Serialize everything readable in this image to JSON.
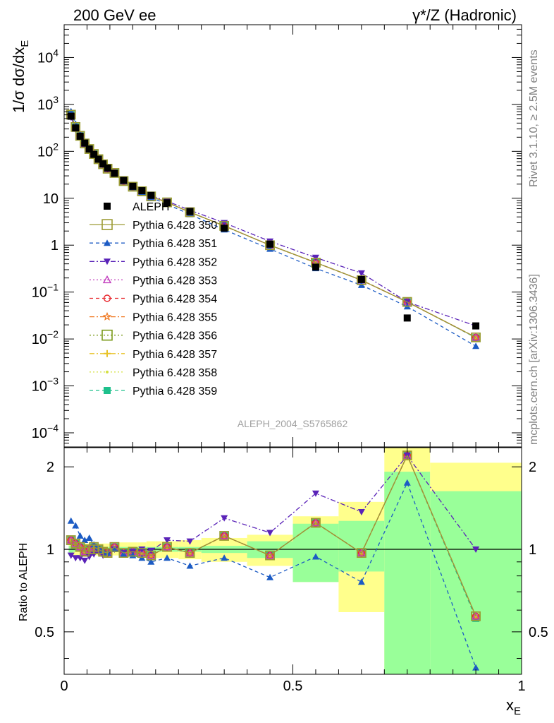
{
  "header": {
    "left": "200 GeV ee",
    "right": "γ*/Z (Hadronic)"
  },
  "side_labels": {
    "rivet": "Rivet 3.1.10, ≥ 2.5M events",
    "source": "mcplots.cern.ch [arXiv:1306.3436]"
  },
  "analysis_tag": "ALEPH_2004_S5765862",
  "axes": {
    "ylabel_main": "1/σ dσ/dx_E",
    "ylabel_ratio": "Ratio to ALEPH",
    "xlabel": "x_E",
    "x_ticks": [
      "0",
      "0.5",
      "1"
    ],
    "y_ticks_main": [
      "10^4",
      "10^3",
      "10^2",
      "10",
      "1",
      "10^−1",
      "10^−2",
      "10^−3",
      "10^−4"
    ],
    "y_ticks_ratio": [
      "2",
      "1",
      "0.5"
    ]
  },
  "legend": [
    {
      "label": "ALEPH",
      "color": "#000000",
      "marker": "square-filled",
      "dash": "none"
    },
    {
      "label": "Pythia 6.428 350",
      "color": "#9c9b34",
      "marker": "square-open",
      "dash": "solid"
    },
    {
      "label": "Pythia 6.428 351",
      "color": "#1c5bc4",
      "marker": "triangle-up-filled",
      "dash": "dashed"
    },
    {
      "label": "Pythia 6.428 352",
      "color": "#5a23b8",
      "marker": "triangle-down-filled",
      "dash": "dashdot"
    },
    {
      "label": "Pythia 6.428 353",
      "color": "#c13bbd",
      "marker": "triangle-up-open",
      "dash": "dotted"
    },
    {
      "label": "Pythia 6.428 354",
      "color": "#e8262c",
      "marker": "circle-open",
      "dash": "dashed"
    },
    {
      "label": "Pythia 6.428 355",
      "color": "#f07a24",
      "marker": "star-open",
      "dash": "dashdot"
    },
    {
      "label": "Pythia 6.428 356",
      "color": "#7c9b1c",
      "marker": "square-open",
      "dash": "dotted"
    },
    {
      "label": "Pythia 6.428 357",
      "color": "#e8c227",
      "marker": "cross-filled",
      "dash": "dashdot"
    },
    {
      "label": "Pythia 6.428 358",
      "color": "#d4e040",
      "marker": "dot",
      "dash": "dotted"
    },
    {
      "label": "Pythia 6.428 359",
      "color": "#1ec08c",
      "marker": "square-filled",
      "dash": "dashed"
    }
  ],
  "chart_data": {
    "type": "scatter",
    "xlabel": "x_E",
    "xlim": [
      0,
      1
    ],
    "main_ylim": [
      5e-05,
      50000
    ],
    "main_scale": "log",
    "ratio_ylim": [
      0.35,
      2.35
    ],
    "ratio_scale": "log",
    "x": [
      0.015,
      0.025,
      0.035,
      0.045,
      0.055,
      0.065,
      0.075,
      0.085,
      0.095,
      0.11,
      0.13,
      0.15,
      0.17,
      0.19,
      0.225,
      0.275,
      0.35,
      0.45,
      0.55,
      0.65,
      0.75,
      0.9
    ],
    "data": {
      "name": "ALEPH",
      "values": [
        560,
        315,
        210,
        150,
        112,
        86,
        68,
        54,
        44,
        34,
        24,
        18,
        14.5,
        11.5,
        8.0,
        5.2,
        2.3,
        1.05,
        0.34,
        0.185,
        0.028,
        0.019
      ]
    },
    "band_x_edges": [
      0.01,
      0.02,
      0.03,
      0.04,
      0.05,
      0.06,
      0.07,
      0.08,
      0.09,
      0.1,
      0.12,
      0.14,
      0.16,
      0.18,
      0.2,
      0.25,
      0.3,
      0.4,
      0.5,
      0.6,
      0.7,
      0.8,
      1.0
    ],
    "band_inner": [
      [
        0.97,
        1.03
      ],
      [
        0.98,
        1.02
      ],
      [
        0.98,
        1.02
      ],
      [
        0.98,
        1.02
      ],
      [
        0.98,
        1.02
      ],
      [
        0.98,
        1.02
      ],
      [
        0.98,
        1.02
      ],
      [
        0.98,
        1.02
      ],
      [
        0.98,
        1.02
      ],
      [
        0.98,
        1.02
      ],
      [
        0.98,
        1.02
      ],
      [
        0.98,
        1.02
      ],
      [
        0.98,
        1.02
      ],
      [
        0.98,
        1.02
      ],
      [
        0.98,
        1.02
      ],
      [
        0.98,
        1.02
      ],
      [
        0.97,
        1.03
      ],
      [
        0.93,
        1.07
      ],
      [
        0.76,
        1.24
      ],
      [
        0.83,
        1.27
      ],
      [
        0.35,
        1.92
      ],
      [
        0.35,
        1.63
      ]
    ],
    "band_outer": [
      [
        0.95,
        1.05
      ],
      [
        0.95,
        1.05
      ],
      [
        0.95,
        1.05
      ],
      [
        0.95,
        1.05
      ],
      [
        0.95,
        1.05
      ],
      [
        0.95,
        1.05
      ],
      [
        0.95,
        1.05
      ],
      [
        0.95,
        1.05
      ],
      [
        0.95,
        1.05
      ],
      [
        0.95,
        1.05
      ],
      [
        0.94,
        1.06
      ],
      [
        0.94,
        1.06
      ],
      [
        0.94,
        1.06
      ],
      [
        0.93,
        1.07
      ],
      [
        0.93,
        1.07
      ],
      [
        0.92,
        1.08
      ],
      [
        0.9,
        1.1
      ],
      [
        0.87,
        1.13
      ],
      [
        0.76,
        1.32
      ],
      [
        0.59,
        1.49
      ],
      [
        0.35,
        2.35
      ],
      [
        0.44,
        2.07
      ]
    ],
    "mc_series": [
      {
        "name": "Pythia 6.428 350",
        "ratio": [
          1.08,
          1.05,
          1.02,
          0.98,
          1.0,
          1.02,
          1.0,
          0.98,
          0.97,
          1.02,
          0.97,
          0.98,
          0.97,
          0.95,
          1.02,
          0.97,
          1.12,
          0.95,
          1.25,
          0.97,
          2.2,
          0.57
        ]
      },
      {
        "name": "Pythia 6.428 351",
        "ratio": [
          1.27,
          1.22,
          1.12,
          1.08,
          1.1,
          1.04,
          1.02,
          0.99,
          0.97,
          1.0,
          0.96,
          0.95,
          0.93,
          0.9,
          0.93,
          0.87,
          0.93,
          0.79,
          0.94,
          0.76,
          1.75,
          0.37
        ]
      },
      {
        "name": "Pythia 6.428 352",
        "ratio": [
          0.95,
          0.93,
          0.93,
          0.91,
          0.94,
          0.96,
          0.98,
          0.95,
          0.96,
          1.0,
          0.97,
          0.98,
          1.0,
          0.99,
          1.08,
          1.07,
          1.3,
          1.15,
          1.6,
          1.37,
          2.2,
          1.0
        ]
      },
      {
        "name": "Pythia 6.428 353",
        "ratio": [
          1.08,
          1.05,
          1.02,
          0.98,
          1.0,
          1.02,
          1.0,
          0.98,
          0.97,
          1.02,
          0.97,
          0.98,
          0.97,
          0.95,
          1.02,
          0.97,
          1.12,
          0.95,
          1.25,
          0.97,
          2.2,
          0.57
        ]
      },
      {
        "name": "Pythia 6.428 354",
        "ratio": [
          1.08,
          1.05,
          1.02,
          0.98,
          1.0,
          1.02,
          1.0,
          0.98,
          0.97,
          1.02,
          0.97,
          0.98,
          0.97,
          0.95,
          1.02,
          0.97,
          1.12,
          0.95,
          1.25,
          0.97,
          2.2,
          0.57
        ]
      },
      {
        "name": "Pythia 6.428 355",
        "ratio": [
          1.08,
          1.05,
          1.02,
          0.98,
          1.0,
          1.02,
          1.0,
          0.98,
          0.97,
          1.02,
          0.97,
          0.98,
          0.97,
          0.95,
          1.02,
          0.97,
          1.12,
          0.95,
          1.25,
          0.97,
          2.2,
          0.57
        ]
      },
      {
        "name": "Pythia 6.428 356",
        "ratio": [
          1.08,
          1.05,
          1.02,
          0.98,
          1.0,
          1.02,
          1.0,
          0.98,
          0.97,
          1.02,
          0.97,
          0.98,
          0.97,
          0.95,
          1.02,
          0.97,
          1.12,
          0.95,
          1.25,
          0.97,
          2.2,
          0.57
        ]
      },
      {
        "name": "Pythia 6.428 357",
        "ratio": [
          1.08,
          1.05,
          1.02,
          0.98,
          1.0,
          1.02,
          1.0,
          0.98,
          0.97,
          1.02,
          0.97,
          0.98,
          0.97,
          0.95,
          1.02,
          0.97,
          1.12,
          0.95,
          1.25,
          0.97,
          2.2,
          0.57
        ]
      },
      {
        "name": "Pythia 6.428 358",
        "ratio": [
          1.08,
          1.05,
          1.02,
          0.98,
          1.0,
          1.02,
          1.0,
          0.98,
          0.97,
          1.02,
          0.97,
          0.98,
          0.97,
          0.95,
          1.02,
          0.97,
          1.12,
          0.95,
          1.25,
          0.97,
          2.2,
          0.57
        ]
      },
      {
        "name": "Pythia 6.428 359",
        "ratio": [
          1.08,
          1.05,
          1.02,
          0.98,
          1.0,
          1.02,
          1.0,
          0.98,
          0.97,
          1.02,
          0.97,
          0.98,
          0.97,
          0.95,
          1.02,
          0.97,
          1.12,
          0.95,
          1.25,
          0.97,
          2.2,
          0.56
        ]
      }
    ]
  }
}
